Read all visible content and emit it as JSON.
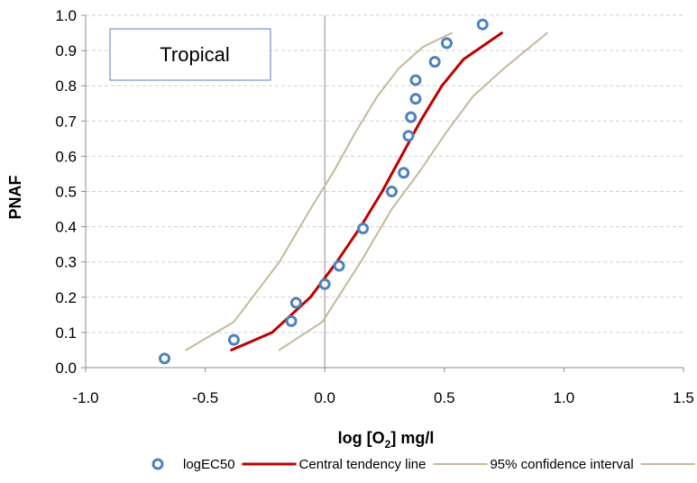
{
  "chart_data": {
    "type": "scatter",
    "title": "",
    "annotation": "Tropical",
    "xlabel": "log [O",
    "xlabel_sub": "2",
    "xlabel_suffix": "] mg/l",
    "ylabel": "PNAF",
    "xlim": [
      -1.0,
      1.5
    ],
    "ylim": [
      0.0,
      1.0
    ],
    "x_ticks": [
      "-1.0",
      "-0.5",
      "0.0",
      "0.5",
      "1.0",
      "1.5"
    ],
    "x_tick_values": [
      -1.0,
      -0.5,
      0.0,
      0.5,
      1.0,
      1.5
    ],
    "y_ticks": [
      "0.0",
      "0.1",
      "0.2",
      "0.3",
      "0.4",
      "0.5",
      "0.6",
      "0.7",
      "0.8",
      "0.9",
      "1.0"
    ],
    "y_tick_values": [
      0.0,
      0.1,
      0.2,
      0.3,
      0.4,
      0.5,
      0.6,
      0.7,
      0.8,
      0.9,
      1.0
    ],
    "grid": "horizontal dashed",
    "legend_position": "bottom",
    "colors": {
      "points_fill": "#ffffff",
      "points_stroke": "#4f81bd",
      "central": "#c00000",
      "ci": "#c4b99a",
      "grid": "#d0d0d0",
      "axis": "#8c8c8c"
    },
    "series": [
      {
        "name": "logEC50",
        "kind": "points",
        "x": [
          -0.67,
          -0.38,
          -0.12,
          -0.14,
          0.0,
          0.06,
          0.16,
          0.28,
          0.33,
          0.35,
          0.36,
          0.38,
          0.38,
          0.46,
          0.51,
          0.66
        ],
        "y": [
          0.026,
          0.079,
          0.184,
          0.132,
          0.237,
          0.289,
          0.395,
          0.5,
          0.553,
          0.658,
          0.711,
          0.763,
          0.816,
          0.868,
          0.921,
          0.974
        ]
      },
      {
        "name": "Central tendency line",
        "kind": "line",
        "x": [
          -0.39,
          -0.22,
          -0.06,
          0.05,
          0.15,
          0.24,
          0.32,
          0.4,
          0.49,
          0.58,
          0.74
        ],
        "y": [
          0.05,
          0.1,
          0.2,
          0.3,
          0.4,
          0.5,
          0.6,
          0.7,
          0.8,
          0.875,
          0.95
        ]
      },
      {
        "name": "95% confidence interval",
        "kind": "line",
        "x": [
          -0.58,
          -0.38,
          -0.19,
          -0.06,
          0.04,
          0.13,
          0.22,
          0.31,
          0.41,
          0.53
        ],
        "y": [
          0.05,
          0.13,
          0.3,
          0.45,
          0.56,
          0.67,
          0.77,
          0.85,
          0.91,
          0.95
        ]
      },
      {
        "name": "",
        "kind": "line",
        "x": [
          -0.19,
          -0.01,
          0.15,
          0.28,
          0.4,
          0.51,
          0.62,
          0.75,
          0.93
        ],
        "y": [
          0.05,
          0.13,
          0.3,
          0.45,
          0.56,
          0.67,
          0.77,
          0.85,
          0.95
        ]
      }
    ],
    "legend": [
      {
        "label": "logEC50",
        "kind": "marker"
      },
      {
        "label": "Central tendency line",
        "kind": "central"
      },
      {
        "label": "95% confidence interval",
        "kind": "ci"
      }
    ]
  }
}
